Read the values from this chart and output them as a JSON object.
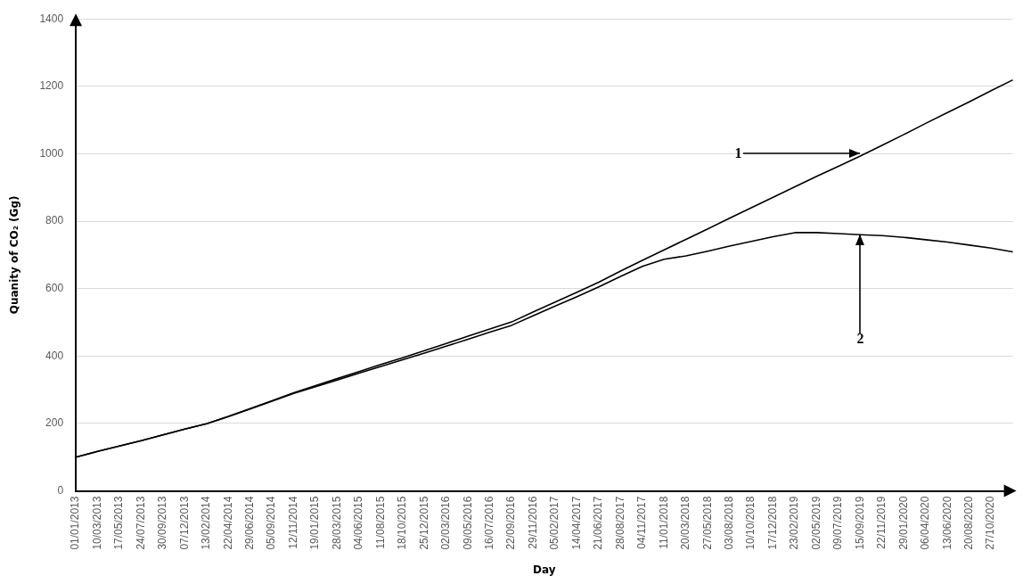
{
  "chart_data": {
    "type": "line",
    "xlabel": "Day",
    "ylabel": "Quanity of CO₂ (Gg)",
    "categories": [
      "01/01/2013",
      "10/03/2013",
      "17/05/2013",
      "24/07/2013",
      "30/09/2013",
      "07/12/2013",
      "13/02/2014",
      "22/04/2014",
      "29/06/2014",
      "05/09/2014",
      "12/11/2014",
      "19/01/2015",
      "28/03/2015",
      "04/06/2015",
      "11/08/2015",
      "18/10/2015",
      "25/12/2015",
      "02/03/2016",
      "09/05/2016",
      "16/07/2016",
      "22/09/2016",
      "29/11/2016",
      "05/02/2017",
      "14/04/2017",
      "21/06/2017",
      "28/08/2017",
      "04/11/2017",
      "11/01/2018",
      "20/03/2018",
      "27/05/2018",
      "03/08/2018",
      "10/10/2018",
      "17/12/2018",
      "23/02/2019",
      "02/05/2019",
      "09/07/2019",
      "15/09/2019",
      "22/11/2019",
      "29/01/2020",
      "06/04/2020",
      "13/06/2020",
      "20/08/2020",
      "27/10/2020",
      null
    ],
    "series": [
      {
        "color": "#000000",
        "values": [
          100,
          117,
          133,
          149,
          166,
          183,
          199,
          221,
          244,
          267,
          291,
          312,
          333,
          354,
          375,
          395,
          416,
          437,
          459,
          480,
          501,
          531,
          560,
          589,
          619,
          652,
          684,
          715,
          746,
          777,
          809,
          840,
          871,
          902,
          933,
          963,
          993,
          1025,
          1057,
          1090,
          1122,
          1154,
          1187,
          1219
        ]
      },
      {
        "color": "#000000",
        "values": [
          100,
          117,
          133,
          149,
          166,
          183,
          199,
          220,
          243,
          266,
          289,
          309,
          329,
          349,
          369,
          389,
          409,
          429,
          450,
          471,
          491,
          520,
          548,
          576,
          605,
          636,
          666,
          687,
          697,
          711,
          726,
          740,
          754,
          766,
          766,
          763,
          760,
          757,
          752,
          745,
          738,
          729,
          720,
          709
        ]
      }
    ],
    "ylim": [
      0,
      1400
    ],
    "yticks": [
      0,
      200,
      400,
      600,
      800,
      1000,
      1200,
      1400
    ],
    "grid": "y",
    "legend": false,
    "marker": "none",
    "line_style": "solid",
    "annotations": [
      {
        "text": "1",
        "x": "15/09/2019",
        "y": 1000
      },
      {
        "text": "2",
        "x": "15/09/2019",
        "y": 760
      }
    ]
  }
}
